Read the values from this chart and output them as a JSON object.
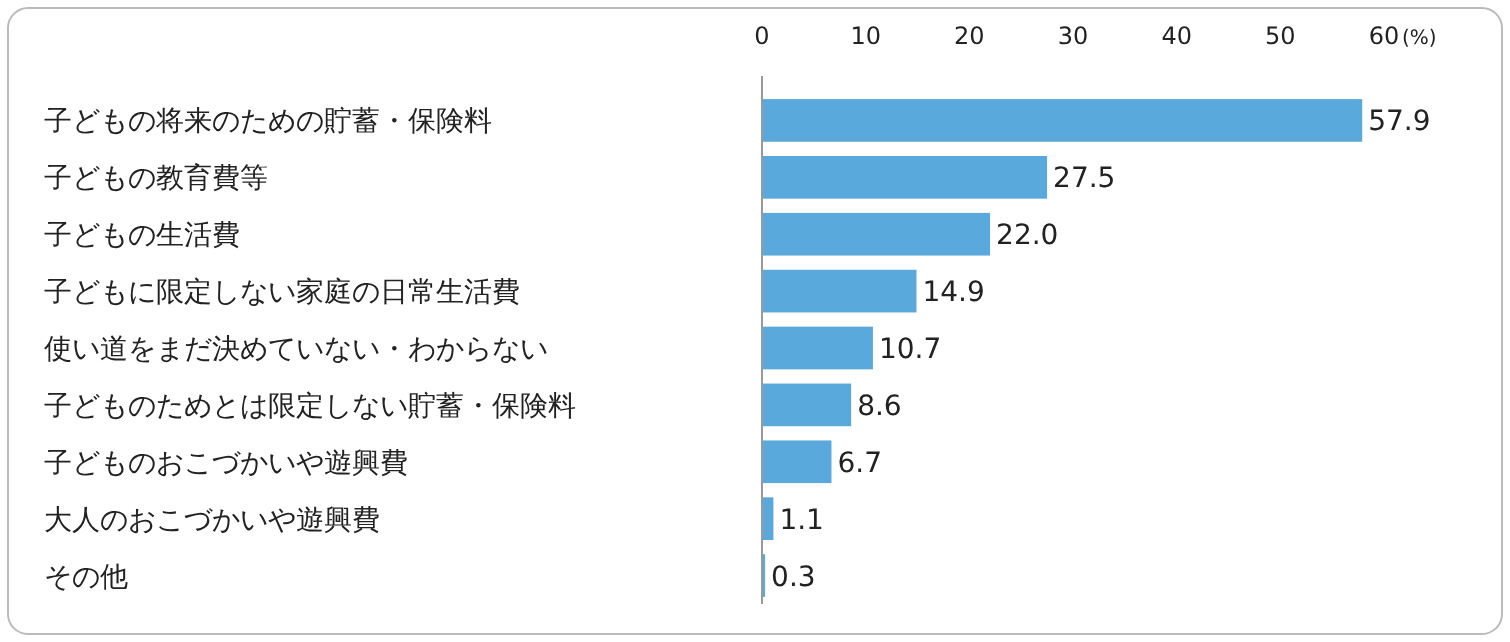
{
  "chart_data": {
    "type": "bar",
    "orientation": "horizontal",
    "categories": [
      "子どもの将来のための貯蓄・保険料",
      "子どもの教育費等",
      "子どもの生活費",
      "子どもに限定しない家庭の日常生活費",
      "使い道をまだ決めていない・わからない",
      "子どものためとは限定しない貯蓄・保険料",
      "子どものおこづかいや遊興費",
      "大人のおこづかいや遊興費",
      "その他"
    ],
    "values": [
      57.9,
      27.5,
      22.0,
      14.9,
      10.7,
      8.6,
      6.7,
      1.1,
      0.3
    ],
    "value_labels": [
      "57.9",
      "27.5",
      "22.0",
      "14.9",
      "10.7",
      "8.6",
      "6.7",
      "1.1",
      "0.3"
    ],
    "color": "#5aa9dc",
    "xlabel": "(%)",
    "xlim": [
      0,
      60
    ],
    "xticks": [
      0,
      10,
      20,
      30,
      40,
      50,
      60
    ],
    "grid": false
  }
}
